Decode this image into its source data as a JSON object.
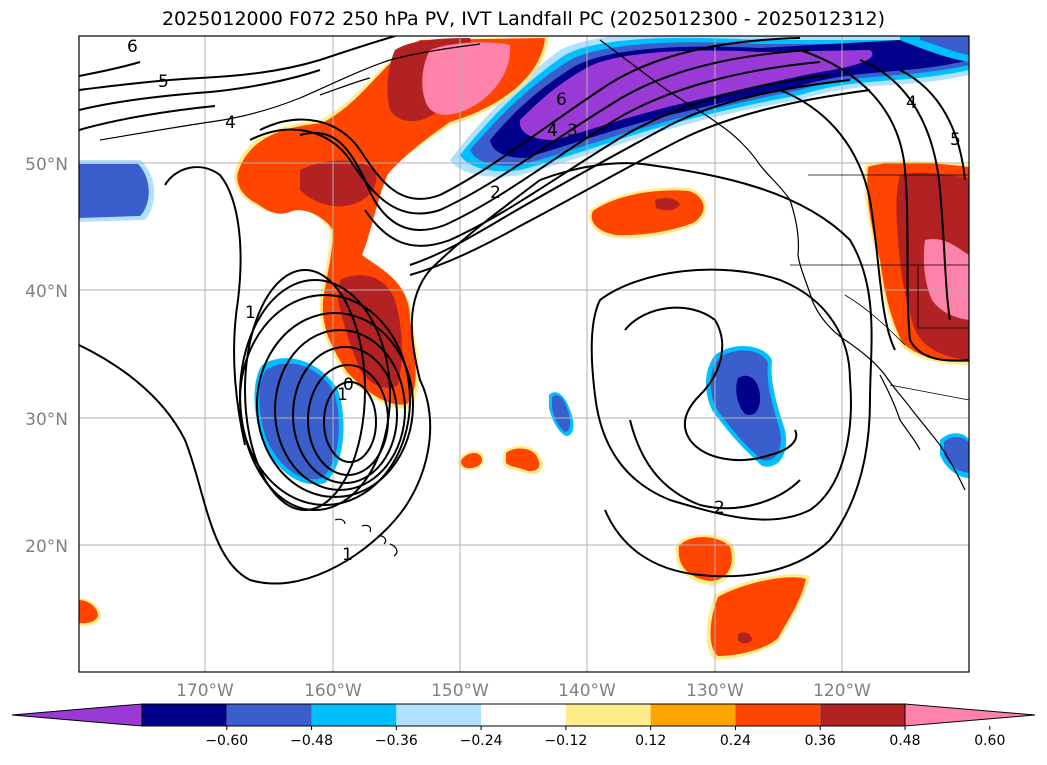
{
  "title": "2025012000 F072 250 hPa PV, IVT Landfall PC (2025012300 - 2025012312)",
  "lat_labels": [
    "50°N",
    "40°N",
    "30°N",
    "20°N"
  ],
  "lon_labels": [
    "170°W",
    "160°W",
    "150°W",
    "140°W",
    "130°W",
    "120°W"
  ],
  "contour_labels": [
    "6",
    "5",
    "4",
    "1",
    "6",
    "4",
    "3",
    "2",
    "1",
    "0",
    "1",
    "2",
    "4",
    "5"
  ],
  "colorbar": {
    "ticks": [
      "−0.60",
      "−0.48",
      "−0.36",
      "−0.24",
      "−0.12",
      "0.12",
      "0.24",
      "0.36",
      "0.48",
      "0.60"
    ],
    "colors": [
      "#9a3ad6",
      "#00008b",
      "#3a5fcd",
      "#00bfff",
      "#b0e2ff",
      "#ffffff",
      "#ffec8b",
      "#ffa500",
      "#ff4500",
      "#b22222",
      "#ff82ab"
    ]
  },
  "colors": {
    "grid": "#b0b0b0",
    "land": "#000000",
    "contour": "#000000"
  }
}
